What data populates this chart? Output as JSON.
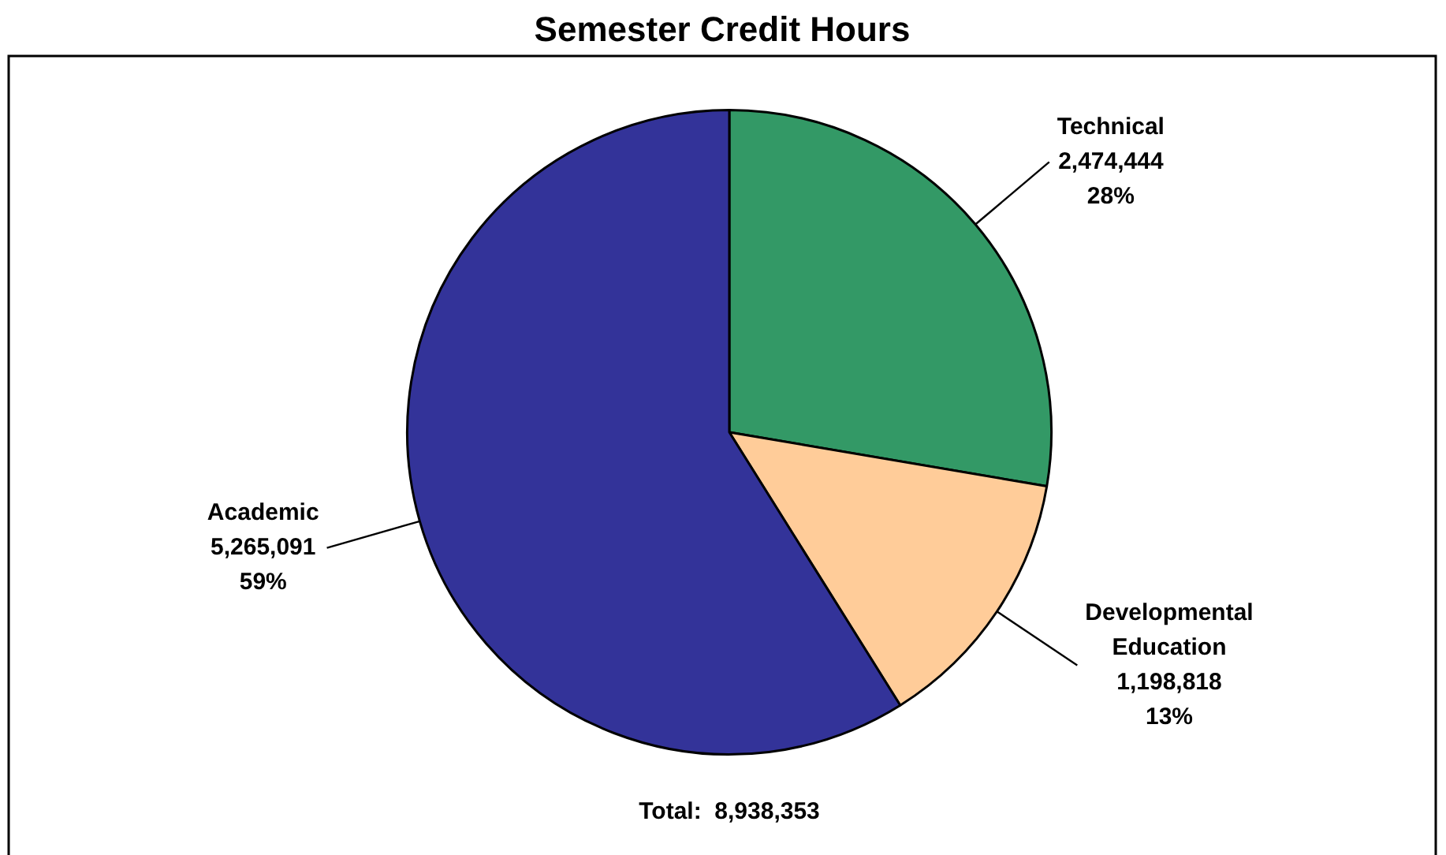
{
  "chart_data": {
    "type": "pie",
    "title": "Semester Credit Hours",
    "categories": [
      "Technical",
      "Developmental Education",
      "Academic"
    ],
    "values": [
      2474444,
      1198818,
      5265091
    ],
    "colors": [
      "#339966",
      "#ffcc99",
      "#333399"
    ],
    "value_labels": [
      "2,474,444\n28%",
      "1,198,818\n13%",
      "5,265,091\n59%"
    ],
    "annotations": [
      "Total:  8,938,353"
    ]
  }
}
